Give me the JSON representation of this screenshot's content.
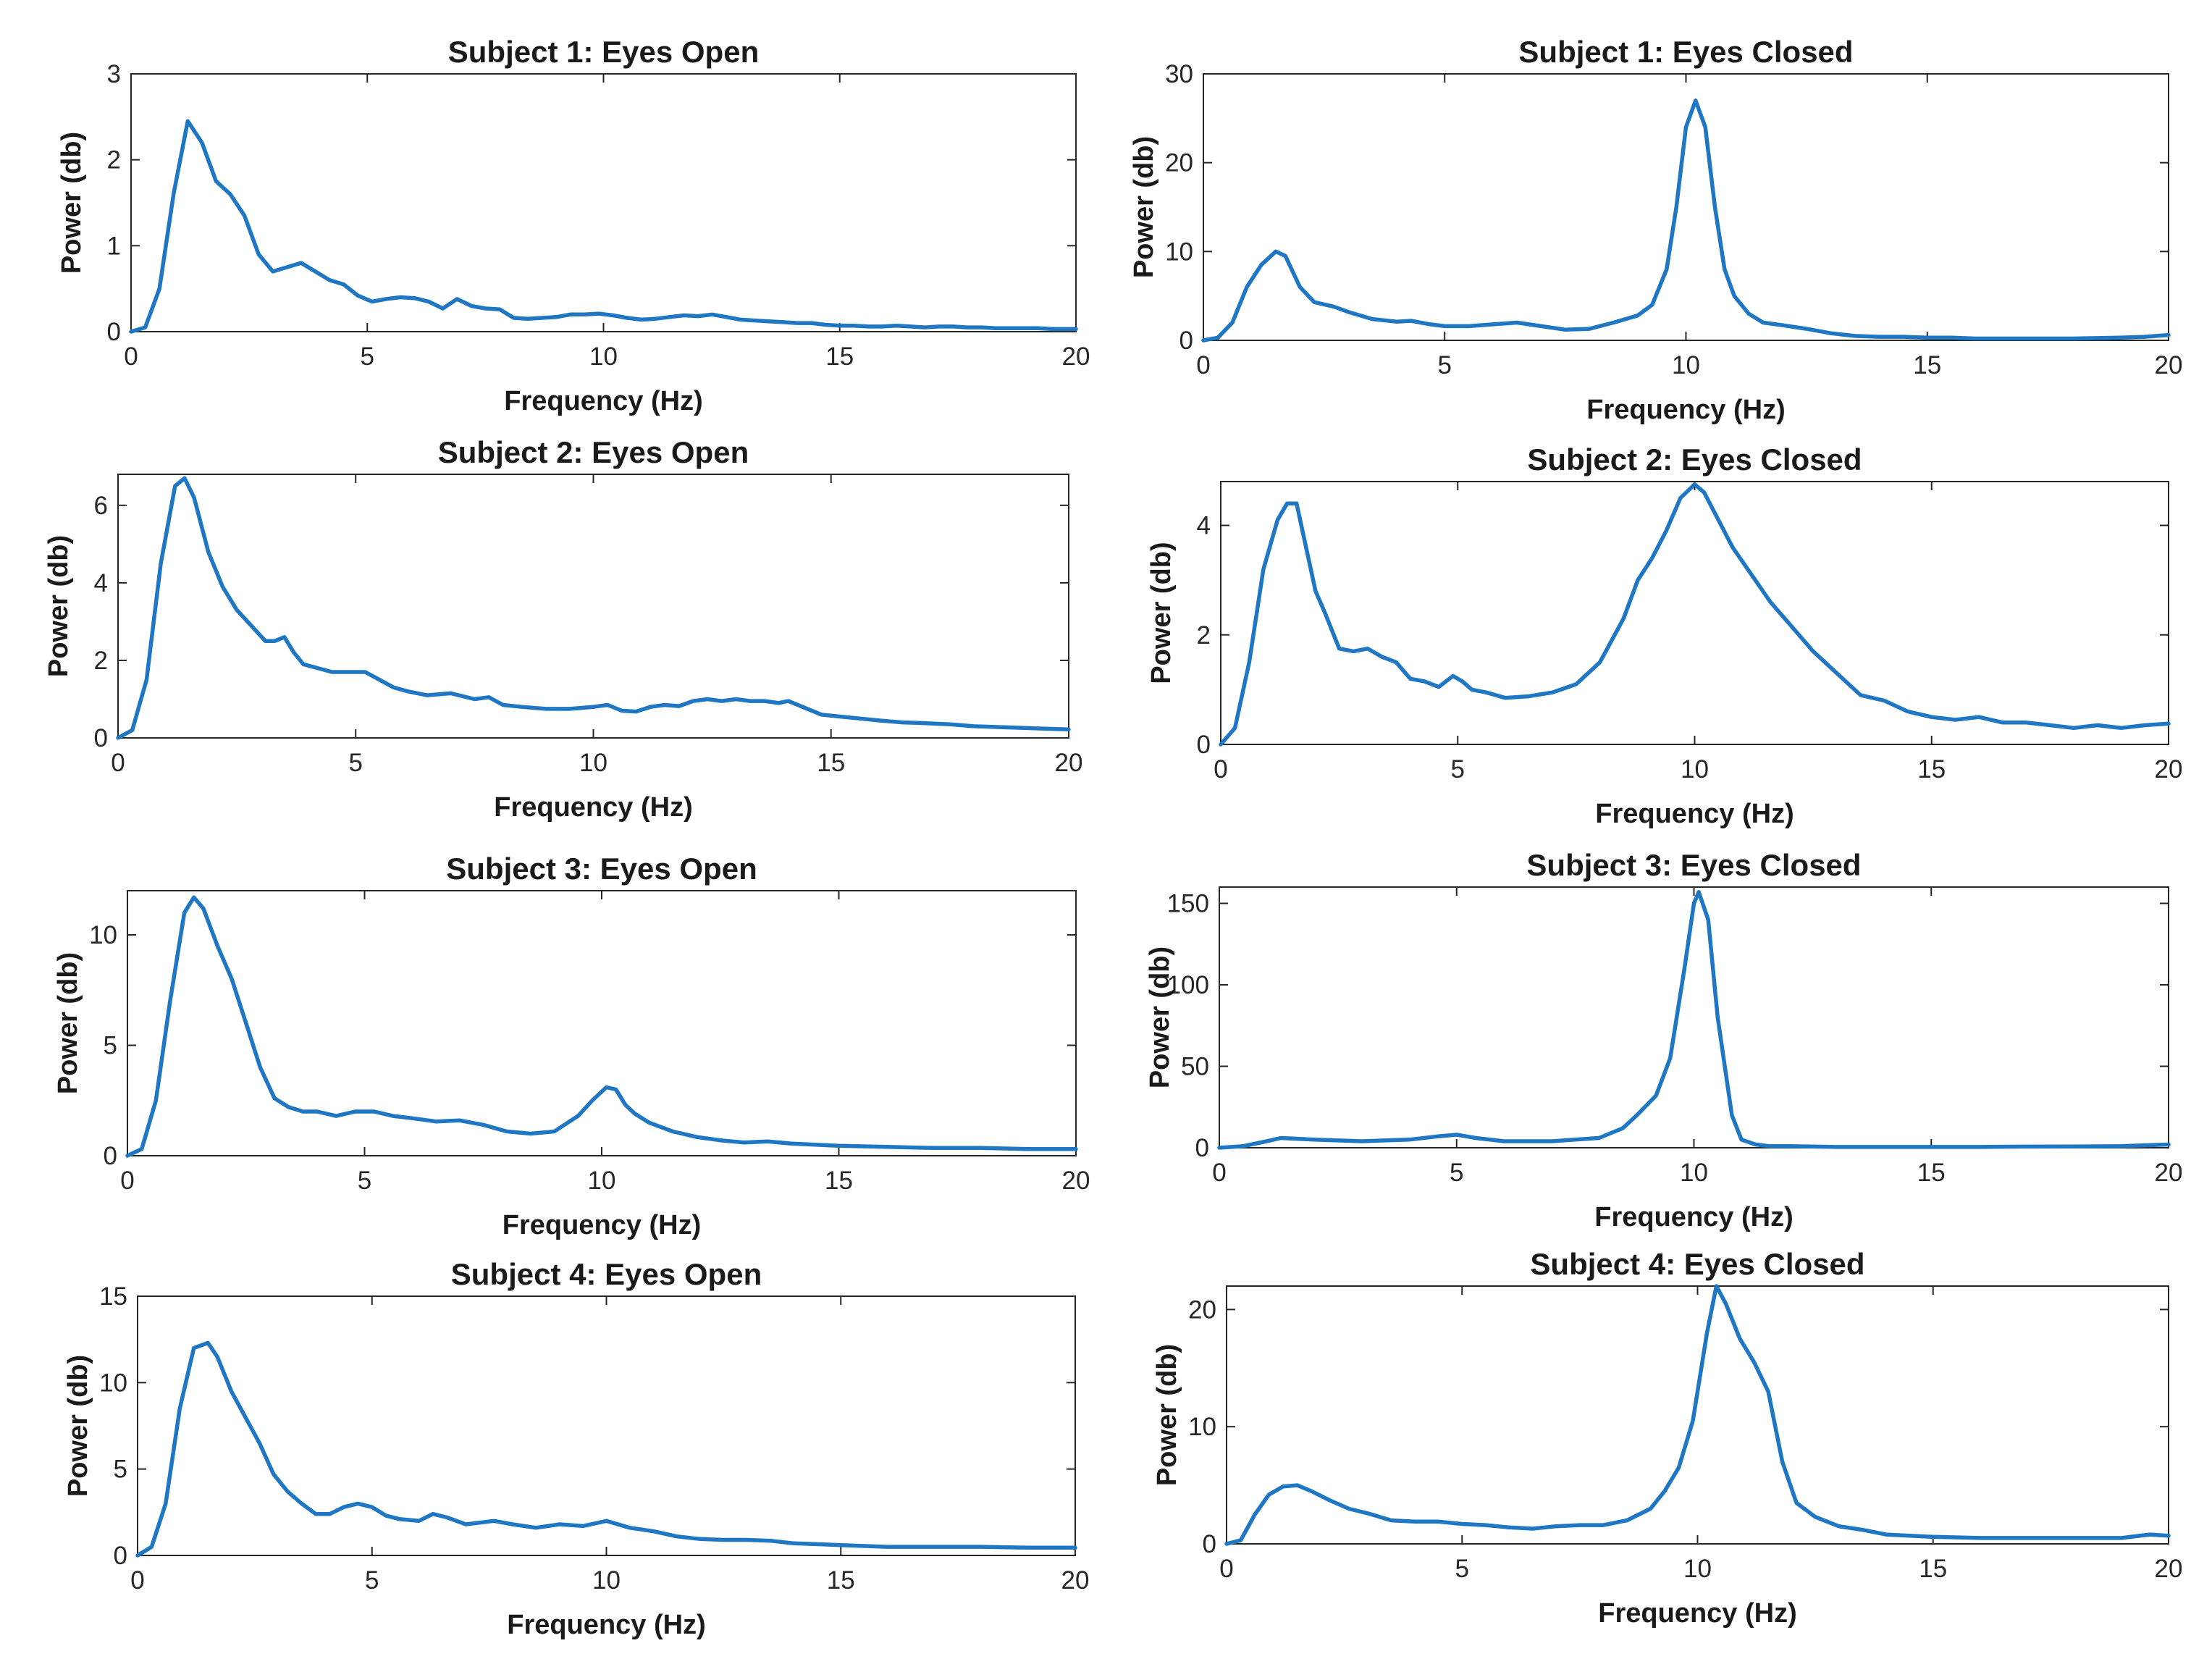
{
  "figure": {
    "line_color": "#1f77c4"
  },
  "chart_data": [
    {
      "type": "line",
      "title": "Subject 1: Eyes Open",
      "xlabel": "Frequency (Hz)",
      "ylabel": "Power (db)",
      "xlim": [
        0,
        20
      ],
      "ylim": [
        0,
        3
      ],
      "xticks": [
        0,
        5,
        10,
        15,
        20
      ],
      "yticks": [
        0,
        1,
        2,
        3
      ],
      "grid": false,
      "series": [
        {
          "name": "Subject 1: Eyes Open",
          "x": [
            0,
            0.3,
            0.6,
            0.9,
            1.2,
            1.5,
            1.8,
            2.1,
            2.4,
            2.7,
            3.0,
            3.3,
            3.6,
            3.9,
            4.2,
            4.5,
            4.8,
            5.1,
            5.4,
            5.7,
            6.0,
            6.3,
            6.6,
            6.9,
            7.2,
            7.5,
            7.8,
            8.1,
            8.4,
            8.7,
            9.0,
            9.3,
            9.6,
            9.9,
            10.2,
            10.5,
            10.8,
            11.1,
            11.4,
            11.7,
            12.0,
            12.3,
            12.6,
            12.9,
            13.2,
            13.5,
            13.8,
            14.1,
            14.4,
            14.7,
            15.0,
            15.3,
            15.6,
            15.9,
            16.2,
            16.5,
            16.8,
            17.1,
            17.4,
            17.7,
            18.0,
            18.3,
            18.6,
            18.9,
            19.2,
            19.5,
            19.8,
            20.0
          ],
          "y": [
            0,
            0.05,
            0.5,
            1.6,
            2.45,
            2.2,
            1.75,
            1.6,
            1.35,
            0.9,
            0.7,
            0.75,
            0.8,
            0.7,
            0.6,
            0.55,
            0.42,
            0.35,
            0.38,
            0.4,
            0.39,
            0.35,
            0.27,
            0.38,
            0.3,
            0.27,
            0.26,
            0.16,
            0.15,
            0.16,
            0.17,
            0.2,
            0.2,
            0.21,
            0.19,
            0.16,
            0.14,
            0.15,
            0.17,
            0.19,
            0.18,
            0.2,
            0.17,
            0.14,
            0.13,
            0.12,
            0.11,
            0.1,
            0.1,
            0.08,
            0.07,
            0.07,
            0.06,
            0.06,
            0.07,
            0.06,
            0.05,
            0.06,
            0.06,
            0.05,
            0.05,
            0.04,
            0.04,
            0.04,
            0.04,
            0.03,
            0.03,
            0.03
          ]
        }
      ]
    },
    {
      "type": "line",
      "title": "Subject 1: Eyes Closed",
      "xlabel": "Frequency (Hz)",
      "ylabel": "Power (db)",
      "xlim": [
        0,
        20
      ],
      "ylim": [
        0,
        30
      ],
      "xticks": [
        0,
        5,
        10,
        15,
        20
      ],
      "yticks": [
        0,
        10,
        20,
        30
      ],
      "grid": false,
      "series": [
        {
          "name": "Subject 1: Eyes Closed",
          "x": [
            0,
            0.3,
            0.6,
            0.9,
            1.2,
            1.5,
            1.7,
            2.0,
            2.3,
            2.7,
            3.0,
            3.5,
            4.0,
            4.3,
            4.7,
            5.0,
            5.5,
            6.0,
            6.5,
            7.0,
            7.5,
            8.0,
            8.5,
            9.0,
            9.3,
            9.6,
            9.8,
            10.0,
            10.2,
            10.4,
            10.6,
            10.8,
            11.0,
            11.3,
            11.6,
            12.0,
            12.5,
            13.0,
            13.5,
            14.0,
            14.5,
            15.0,
            15.5,
            16.0,
            17.0,
            18.0,
            19.0,
            19.5,
            20.0
          ],
          "y": [
            0,
            0.3,
            2,
            6,
            8.5,
            10,
            9.5,
            6,
            4.3,
            3.8,
            3.2,
            2.4,
            2.1,
            2.2,
            1.8,
            1.6,
            1.6,
            1.8,
            2,
            1.6,
            1.2,
            1.3,
            2,
            2.8,
            4,
            8,
            15,
            24,
            27,
            24,
            15,
            8,
            5,
            3,
            2,
            1.7,
            1.3,
            0.8,
            0.5,
            0.4,
            0.4,
            0.3,
            0.3,
            0.2,
            0.2,
            0.2,
            0.3,
            0.4,
            0.6
          ]
        }
      ]
    },
    {
      "type": "line",
      "title": "Subject 2: Eyes Open",
      "xlabel": "Frequency (Hz)",
      "ylabel": "Power (db)",
      "xlim": [
        0,
        20
      ],
      "ylim": [
        0,
        6.8
      ],
      "xticks": [
        0,
        5,
        10,
        15,
        20
      ],
      "yticks": [
        0,
        2,
        4,
        6
      ],
      "grid": false,
      "series": [
        {
          "name": "Subject 2: Eyes Open",
          "x": [
            0,
            0.3,
            0.6,
            0.9,
            1.2,
            1.4,
            1.6,
            1.9,
            2.2,
            2.5,
            2.8,
            3.1,
            3.3,
            3.5,
            3.7,
            3.9,
            4.2,
            4.5,
            4.8,
            5.2,
            5.5,
            5.8,
            6.1,
            6.5,
            7.0,
            7.5,
            7.8,
            8.1,
            8.5,
            9.0,
            9.5,
            10.0,
            10.3,
            10.6,
            10.9,
            11.2,
            11.5,
            11.8,
            12.1,
            12.4,
            12.7,
            13.0,
            13.3,
            13.6,
            13.9,
            14.1,
            14.4,
            14.8,
            15.2,
            15.6,
            16.0,
            16.5,
            17.0,
            17.5,
            18.0,
            18.5,
            19.0,
            19.5,
            20.0
          ],
          "y": [
            0,
            0.2,
            1.5,
            4.5,
            6.5,
            6.7,
            6.2,
            4.8,
            3.9,
            3.3,
            2.9,
            2.5,
            2.5,
            2.6,
            2.2,
            1.9,
            1.8,
            1.7,
            1.7,
            1.7,
            1.5,
            1.3,
            1.2,
            1.1,
            1.15,
            1,
            1.05,
            0.85,
            0.8,
            0.75,
            0.75,
            0.8,
            0.85,
            0.7,
            0.68,
            0.8,
            0.85,
            0.82,
            0.95,
            1,
            0.95,
            1,
            0.95,
            0.95,
            0.9,
            0.95,
            0.8,
            0.6,
            0.55,
            0.5,
            0.45,
            0.4,
            0.38,
            0.35,
            0.3,
            0.28,
            0.26,
            0.24,
            0.22
          ]
        }
      ]
    },
    {
      "type": "line",
      "title": "Subject 2: Eyes Closed",
      "xlabel": "Frequency (Hz)",
      "ylabel": "Power (db)",
      "xlim": [
        0,
        20
      ],
      "ylim": [
        0,
        4.8
      ],
      "xticks": [
        0,
        5,
        10,
        15,
        20
      ],
      "yticks": [
        0,
        2,
        4
      ],
      "grid": false,
      "series": [
        {
          "name": "Subject 2: Eyes Closed",
          "x": [
            0,
            0.3,
            0.6,
            0.9,
            1.2,
            1.4,
            1.6,
            1.8,
            2.0,
            2.2,
            2.5,
            2.8,
            3.1,
            3.4,
            3.7,
            4.0,
            4.3,
            4.6,
            4.9,
            5.1,
            5.3,
            5.6,
            6.0,
            6.5,
            7.0,
            7.5,
            8.0,
            8.5,
            8.8,
            9.1,
            9.4,
            9.7,
            10.0,
            10.2,
            10.5,
            10.8,
            11.2,
            11.6,
            12.0,
            12.5,
            13.0,
            13.5,
            14.0,
            14.5,
            15.0,
            15.5,
            16.0,
            16.5,
            17.0,
            17.5,
            18.0,
            18.5,
            19.0,
            19.5,
            20.0
          ],
          "y": [
            0,
            0.3,
            1.5,
            3.2,
            4.1,
            4.4,
            4.4,
            3.6,
            2.8,
            2.4,
            1.75,
            1.7,
            1.75,
            1.6,
            1.5,
            1.2,
            1.15,
            1.05,
            1.25,
            1.15,
            1.0,
            0.95,
            0.85,
            0.88,
            0.95,
            1.1,
            1.5,
            2.3,
            3.0,
            3.4,
            3.9,
            4.5,
            4.75,
            4.6,
            4.1,
            3.6,
            3.1,
            2.6,
            2.2,
            1.7,
            1.3,
            0.9,
            0.8,
            0.6,
            0.5,
            0.45,
            0.5,
            0.4,
            0.4,
            0.35,
            0.3,
            0.35,
            0.3,
            0.35,
            0.38
          ]
        }
      ]
    },
    {
      "type": "line",
      "title": "Subject 3: Eyes Open",
      "xlabel": "Frequency (Hz)",
      "ylabel": "Power (db)",
      "xlim": [
        0,
        20
      ],
      "ylim": [
        0,
        12
      ],
      "xticks": [
        0,
        5,
        10,
        15,
        20
      ],
      "yticks": [
        0,
        5,
        10
      ],
      "grid": false,
      "series": [
        {
          "name": "Subject 3: Eyes Open",
          "x": [
            0,
            0.3,
            0.6,
            0.9,
            1.2,
            1.4,
            1.6,
            1.9,
            2.2,
            2.5,
            2.8,
            3.1,
            3.4,
            3.7,
            4.0,
            4.4,
            4.8,
            5.2,
            5.6,
            6.0,
            6.5,
            7.0,
            7.5,
            8.0,
            8.5,
            9.0,
            9.5,
            9.8,
            10.1,
            10.3,
            10.5,
            10.7,
            11.0,
            11.5,
            12.0,
            12.5,
            13.0,
            13.5,
            14.0,
            14.5,
            15.0,
            16.0,
            17.0,
            18.0,
            19.0,
            20.0
          ],
          "y": [
            0,
            0.3,
            2.5,
            7,
            11,
            11.7,
            11.2,
            9.5,
            8,
            6,
            4,
            2.6,
            2.2,
            2.0,
            2.0,
            1.8,
            2.0,
            2.0,
            1.8,
            1.7,
            1.55,
            1.6,
            1.4,
            1.1,
            1.0,
            1.1,
            1.8,
            2.5,
            3.1,
            3.0,
            2.3,
            1.9,
            1.5,
            1.1,
            0.85,
            0.7,
            0.6,
            0.65,
            0.55,
            0.5,
            0.45,
            0.4,
            0.35,
            0.35,
            0.3,
            0.3
          ]
        }
      ]
    },
    {
      "type": "line",
      "title": "Subject 3: Eyes Closed",
      "xlabel": "Frequency (Hz)",
      "ylabel": "Power (db)",
      "xlim": [
        0,
        20
      ],
      "ylim": [
        0,
        160
      ],
      "xticks": [
        0,
        5,
        10,
        15,
        20
      ],
      "yticks": [
        0,
        50,
        100,
        150
      ],
      "grid": false,
      "series": [
        {
          "name": "Subject 3: Eyes Closed",
          "x": [
            0,
            0.5,
            1.0,
            1.3,
            2.0,
            3.0,
            4.0,
            4.6,
            5.0,
            5.4,
            6.0,
            7.0,
            8.0,
            8.5,
            8.8,
            9.2,
            9.5,
            9.8,
            10.0,
            10.1,
            10.3,
            10.5,
            10.8,
            11.0,
            11.3,
            11.6,
            12,
            13,
            14,
            15,
            16,
            17,
            18,
            19,
            20
          ],
          "y": [
            0,
            1,
            4,
            6,
            5,
            4,
            5,
            7,
            8,
            6,
            4,
            4,
            6,
            12,
            20,
            32,
            55,
            110,
            150,
            157,
            140,
            80,
            20,
            5,
            2,
            1,
            1,
            0.5,
            0.5,
            0.5,
            0.5,
            0.7,
            0.8,
            1.0,
            2.0
          ]
        }
      ]
    },
    {
      "type": "line",
      "title": "Subject 4: Eyes Open",
      "xlabel": "Frequency (Hz)",
      "ylabel": "Power (db)",
      "xlim": [
        0,
        20
      ],
      "ylim": [
        0,
        15
      ],
      "xticks": [
        0,
        5,
        10,
        15,
        20
      ],
      "yticks": [
        0,
        5,
        10,
        15
      ],
      "grid": false,
      "series": [
        {
          "name": "Subject 4: Eyes Open",
          "x": [
            0,
            0.3,
            0.6,
            0.9,
            1.2,
            1.5,
            1.7,
            2.0,
            2.3,
            2.6,
            2.9,
            3.2,
            3.5,
            3.8,
            4.1,
            4.4,
            4.7,
            5.0,
            5.3,
            5.6,
            6.0,
            6.3,
            6.6,
            7.0,
            7.3,
            7.6,
            8.0,
            8.5,
            9.0,
            9.5,
            10.0,
            10.5,
            11.0,
            11.5,
            12.0,
            12.5,
            13.0,
            13.5,
            14.0,
            15.0,
            16.0,
            17.0,
            18.0,
            19.0,
            20.0
          ],
          "y": [
            0,
            0.5,
            3,
            8.5,
            12,
            12.3,
            11.5,
            9.5,
            8,
            6.5,
            4.7,
            3.7,
            3.0,
            2.4,
            2.4,
            2.8,
            3.0,
            2.8,
            2.3,
            2.1,
            2.0,
            2.4,
            2.2,
            1.8,
            1.9,
            2.0,
            1.8,
            1.6,
            1.8,
            1.7,
            2.0,
            1.6,
            1.4,
            1.1,
            0.95,
            0.9,
            0.9,
            0.85,
            0.7,
            0.6,
            0.5,
            0.5,
            0.5,
            0.45,
            0.45
          ]
        }
      ]
    },
    {
      "type": "line",
      "title": "Subject 4: Eyes Closed",
      "xlabel": "Frequency (Hz)",
      "ylabel": "Power (db)",
      "xlim": [
        0,
        20
      ],
      "ylim": [
        0,
        22
      ],
      "xticks": [
        0,
        5,
        10,
        15,
        20
      ],
      "yticks": [
        0,
        10,
        20
      ],
      "grid": false,
      "series": [
        {
          "name": "Subject 4: Eyes Closed",
          "x": [
            0,
            0.3,
            0.6,
            0.9,
            1.2,
            1.5,
            1.8,
            2.2,
            2.6,
            3.0,
            3.5,
            4.0,
            4.5,
            5.0,
            5.5,
            6.0,
            6.5,
            7.0,
            7.5,
            8.0,
            8.5,
            9.0,
            9.3,
            9.6,
            9.9,
            10.2,
            10.4,
            10.6,
            10.9,
            11.2,
            11.5,
            11.8,
            12.1,
            12.5,
            13.0,
            13.5,
            14.0,
            15.0,
            16.0,
            17.0,
            18.0,
            19.0,
            19.6,
            20.0
          ],
          "y": [
            0,
            0.3,
            2.5,
            4.2,
            4.9,
            5,
            4.5,
            3.7,
            3.0,
            2.6,
            2.0,
            1.9,
            1.9,
            1.7,
            1.6,
            1.4,
            1.3,
            1.5,
            1.6,
            1.6,
            2.0,
            3.0,
            4.5,
            6.5,
            10.5,
            18,
            22,
            20.5,
            17.5,
            15.5,
            13,
            7,
            3.5,
            2.3,
            1.5,
            1.2,
            0.8,
            0.6,
            0.5,
            0.5,
            0.5,
            0.5,
            0.8,
            0.7
          ]
        }
      ]
    }
  ]
}
